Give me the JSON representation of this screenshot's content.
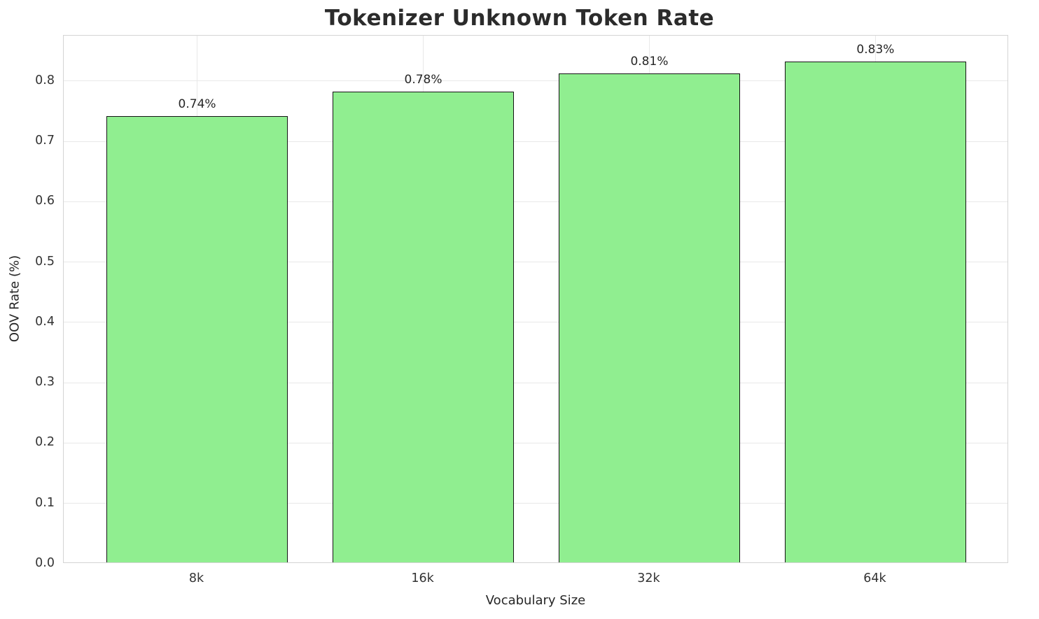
{
  "chart_data": {
    "type": "bar",
    "title": "Tokenizer Unknown Token Rate",
    "xlabel": "Vocabulary Size",
    "ylabel": "OOV Rate (%)",
    "categories": [
      "8k",
      "16k",
      "32k",
      "64k"
    ],
    "values": [
      0.74,
      0.78,
      0.81,
      0.83
    ],
    "labels": [
      "0.74%",
      "0.78%",
      "0.81%",
      "0.83%"
    ],
    "ylim": [
      0,
      0.875
    ],
    "yticks": [
      0.0,
      0.1,
      0.2,
      0.3,
      0.4,
      0.5,
      0.6,
      0.7,
      0.8
    ],
    "ytick_labels": [
      "0.0",
      "0.1",
      "0.2",
      "0.3",
      "0.4",
      "0.5",
      "0.6",
      "0.7",
      "0.8"
    ],
    "grid": true,
    "legend": "none",
    "bar_color": "#90EE90",
    "bar_edge_color": "#141414"
  }
}
